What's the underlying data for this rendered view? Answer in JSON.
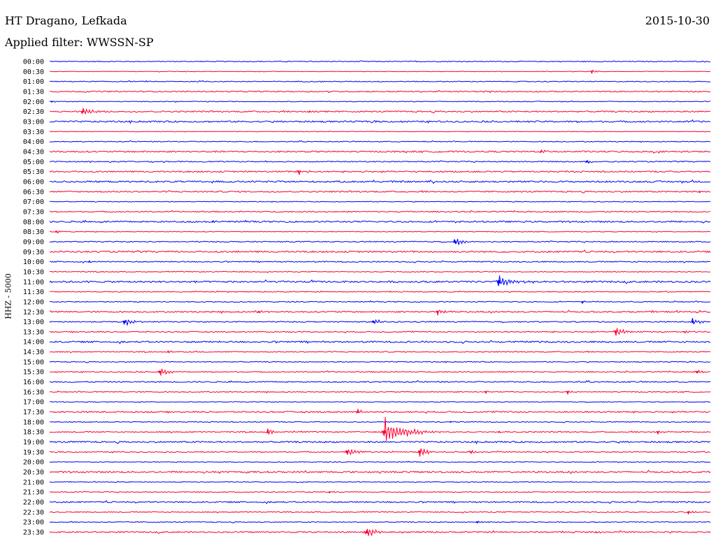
{
  "header": {
    "station": "HT Dragano, Lefkada",
    "date": "2015-10-30",
    "filter": "Applied filter: WWSSN-SP",
    "channel": "HHZ - 5000"
  },
  "colors": {
    "even_row": "#0000ff",
    "odd_row": "#ff0033",
    "background": "#ffffff"
  },
  "chart_data": {
    "type": "line",
    "title": "HT Dragano, Lefkada",
    "ylabel": "HHZ - 5000",
    "rows": [
      "00:00",
      "00:30",
      "01:00",
      "01:30",
      "02:00",
      "02:30",
      "03:00",
      "03:30",
      "04:00",
      "04:30",
      "05:00",
      "05:30",
      "06:00",
      "06:30",
      "07:00",
      "07:30",
      "08:00",
      "08:30",
      "09:00",
      "09:30",
      "10:00",
      "10:30",
      "11:00",
      "11:30",
      "12:00",
      "12:30",
      "13:00",
      "13:30",
      "14:00",
      "14:30",
      "15:00",
      "15:30",
      "16:00",
      "16:30",
      "17:00",
      "17:30",
      "18:00",
      "18:30",
      "19:00",
      "19:30",
      "20:00",
      "20:30",
      "21:00",
      "21:30",
      "22:00",
      "22:30",
      "23:00",
      "23:30"
    ],
    "x_range_minutes": [
      0,
      30
    ],
    "noise_level": [
      1,
      0.6,
      1,
      1.3,
      0.8,
      1.6,
      1.8,
      0.6,
      1,
      1.7,
      1.2,
      1.6,
      1.9,
      1.6,
      0.8,
      1.3,
      1.8,
      0.8,
      1.2,
      1.9,
      1.3,
      1,
      2,
      1,
      1.1,
      1.6,
      1.2,
      1.3,
      1.9,
      1.1,
      1,
      1.2,
      1.4,
      1.1,
      0.8,
      1.7,
      1,
      1.3,
      1.8,
      1.2,
      0.9,
      1.9,
      0.8,
      1,
      1.6,
      1.1,
      1,
      1.6
    ],
    "events": [
      {
        "row": 1,
        "minute": 24.6,
        "amplitude": 3
      },
      {
        "row": 4,
        "minute": 0.1,
        "amplitude": 2
      },
      {
        "row": 5,
        "minute": 1.5,
        "amplitude": 6
      },
      {
        "row": 5,
        "minute": 11.8,
        "amplitude": 2
      },
      {
        "row": 9,
        "minute": 22.3,
        "amplitude": 3
      },
      {
        "row": 10,
        "minute": 24.4,
        "amplitude": 4
      },
      {
        "row": 11,
        "minute": 11.3,
        "amplitude": 5
      },
      {
        "row": 13,
        "minute": 29.5,
        "amplitude": 2
      },
      {
        "row": 16,
        "minute": 7.4,
        "amplitude": 2
      },
      {
        "row": 17,
        "minute": 0.3,
        "amplitude": 3
      },
      {
        "row": 18,
        "minute": 18.4,
        "amplitude": 7
      },
      {
        "row": 20,
        "minute": 1.8,
        "amplitude": 2
      },
      {
        "row": 22,
        "minute": 20.4,
        "amplitude": 11
      },
      {
        "row": 24,
        "minute": 24.2,
        "amplitude": 2
      },
      {
        "row": 25,
        "minute": 9.5,
        "amplitude": 3
      },
      {
        "row": 25,
        "minute": 17.6,
        "amplitude": 5
      },
      {
        "row": 26,
        "minute": 3.4,
        "amplitude": 7
      },
      {
        "row": 26,
        "minute": 14.7,
        "amplitude": 5
      },
      {
        "row": 26,
        "minute": 29.2,
        "amplitude": 6
      },
      {
        "row": 27,
        "minute": 25.7,
        "amplitude": 8
      },
      {
        "row": 27,
        "minute": 28.8,
        "amplitude": 2
      },
      {
        "row": 29,
        "minute": 5.4,
        "amplitude": 2
      },
      {
        "row": 31,
        "minute": 5.0,
        "amplitude": 7
      },
      {
        "row": 31,
        "minute": 29.4,
        "amplitude": 4
      },
      {
        "row": 33,
        "minute": 19.8,
        "amplitude": 2
      },
      {
        "row": 33,
        "minute": 23.5,
        "amplitude": 4
      },
      {
        "row": 35,
        "minute": 14.0,
        "amplitude": 4
      },
      {
        "row": 36,
        "minute": 18.2,
        "amplitude": 2
      },
      {
        "row": 37,
        "minute": 9.9,
        "amplitude": 5
      },
      {
        "row": 37,
        "minute": 15.2,
        "amplitude": 22
      },
      {
        "row": 37,
        "minute": 20.4,
        "amplitude": 2
      },
      {
        "row": 37,
        "minute": 27.6,
        "amplitude": 3
      },
      {
        "row": 39,
        "minute": 13.5,
        "amplitude": 8
      },
      {
        "row": 39,
        "minute": 16.8,
        "amplitude": 8
      },
      {
        "row": 39,
        "minute": 19.1,
        "amplitude": 3
      },
      {
        "row": 43,
        "minute": 12.7,
        "amplitude": 2
      },
      {
        "row": 45,
        "minute": 29.0,
        "amplitude": 3
      },
      {
        "row": 46,
        "minute": 19.4,
        "amplitude": 3
      },
      {
        "row": 47,
        "minute": 14.4,
        "amplitude": 9
      },
      {
        "row": 47,
        "minute": 24.8,
        "amplitude": 2
      }
    ]
  }
}
